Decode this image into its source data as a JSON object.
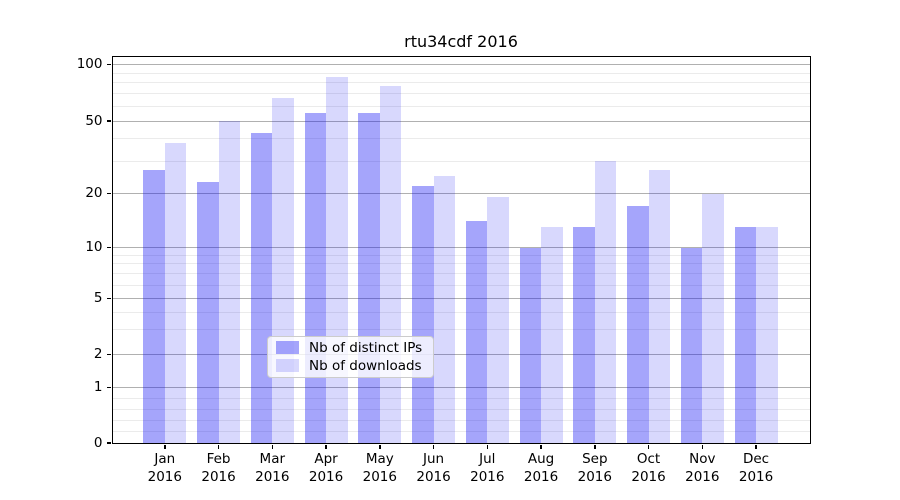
{
  "title": "rtu34cdf 2016",
  "chart_data": {
    "type": "bar",
    "title": "rtu34cdf 2016",
    "categories": [
      "Jan 2016",
      "Feb 2016",
      "Mar 2016",
      "Apr 2016",
      "May 2016",
      "Jun 2016",
      "Jul 2016",
      "Aug 2016",
      "Sep 2016",
      "Oct 2016",
      "Nov 2016",
      "Dec 2016"
    ],
    "x_month_labels": [
      "Jan",
      "Feb",
      "Mar",
      "Apr",
      "May",
      "Jun",
      "Jul",
      "Aug",
      "Sep",
      "Oct",
      "Nov",
      "Dec"
    ],
    "x_year_label": "2016",
    "series": [
      {
        "name": "Nb of distinct IPs",
        "color": "rgba(10,10,245,0.37)",
        "solid_hex": "#a3a3f7",
        "values": [
          27,
          23,
          43,
          55,
          55,
          22,
          14,
          10,
          13,
          17,
          10,
          13
        ]
      },
      {
        "name": "Nb of downloads",
        "color": "rgba(10,10,245,0.16)",
        "solid_hex": "#dadaf9",
        "values": [
          38,
          50,
          66,
          86,
          77,
          25,
          19,
          13,
          30,
          27,
          20,
          13
        ]
      }
    ],
    "xlabel": "",
    "ylabel": "",
    "yscale": "log-like (majors 1,2,5,10,20,50,100; linear below 1)",
    "ylim": [
      0,
      110
    ],
    "y_major_ticks": [
      100,
      50,
      20,
      10,
      5,
      2,
      1,
      0
    ],
    "y_major_tick_labels": [
      "100",
      "50",
      "20",
      "10",
      "5",
      "2",
      "1",
      "0"
    ],
    "y_minor_ticks": [
      0.2,
      0.4,
      0.6,
      0.8,
      3,
      4,
      6,
      7,
      8,
      9,
      30,
      40,
      60,
      70,
      80,
      90
    ],
    "grid": true,
    "legend_position": "lower center"
  },
  "colors": {
    "grid_major": "#b0b0b0",
    "grid_minor": "#ebebeb",
    "axis": "#000000",
    "legend_border": "#cccccc",
    "legend_background": "rgba(255,255,255,0.8)"
  }
}
